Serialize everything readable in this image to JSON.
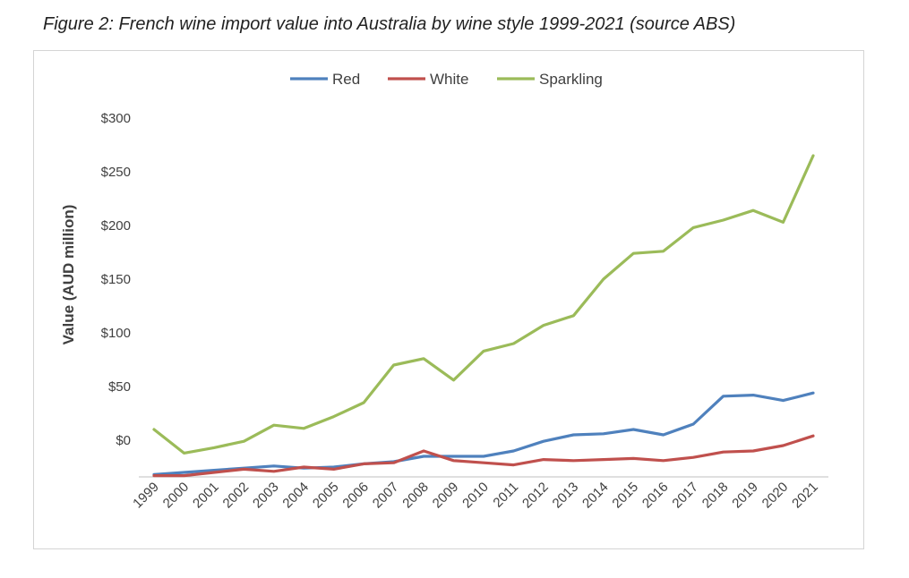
{
  "figure_title": "Figure 2: French wine import value into Australia by wine style 1999-2021 (source ABS)",
  "chart_data": {
    "type": "line",
    "title": "",
    "xlabel": "",
    "ylabel": "Value (AUD million)",
    "x": [
      "1999",
      "2000",
      "2001",
      "2002",
      "2003",
      "2004",
      "2005",
      "2006",
      "2007",
      "2008",
      "2009",
      "2010",
      "2011",
      "2012",
      "2013",
      "2014",
      "2015",
      "2016",
      "2017",
      "2018",
      "2019",
      "2020",
      "2021"
    ],
    "ylim": [
      -33,
      300
    ],
    "y_ticks": [
      "$300",
      "$250",
      "$200",
      "$150",
      "$100",
      "$50",
      "$0"
    ],
    "y_tick_values": [
      300,
      250,
      200,
      150,
      100,
      50,
      0
    ],
    "legend_position": "top-center",
    "grid": false,
    "series": [
      {
        "name": "Red",
        "color": "#4f81bd",
        "values": [
          -32,
          -30,
          -28,
          -26,
          -24,
          -26,
          -25,
          -22,
          -20,
          -15,
          -15,
          -15,
          -10,
          -1,
          5,
          6,
          10,
          5,
          15,
          41,
          42,
          37,
          44
        ]
      },
      {
        "name": "White",
        "color": "#c0504d",
        "values": [
          -33,
          -33,
          -30,
          -27,
          -29,
          -25,
          -27,
          -22,
          -21,
          -10,
          -19,
          -21,
          -23,
          -18,
          -19,
          -18,
          -17,
          -19,
          -16,
          -11,
          -10,
          -5,
          4
        ]
      },
      {
        "name": "Sparkling",
        "color": "#9bbb59",
        "values": [
          10,
          -12,
          -7,
          -1,
          14,
          11,
          22,
          35,
          70,
          76,
          56,
          83,
          90,
          107,
          116,
          150,
          174,
          176,
          198,
          205,
          214,
          203,
          265
        ]
      }
    ]
  }
}
